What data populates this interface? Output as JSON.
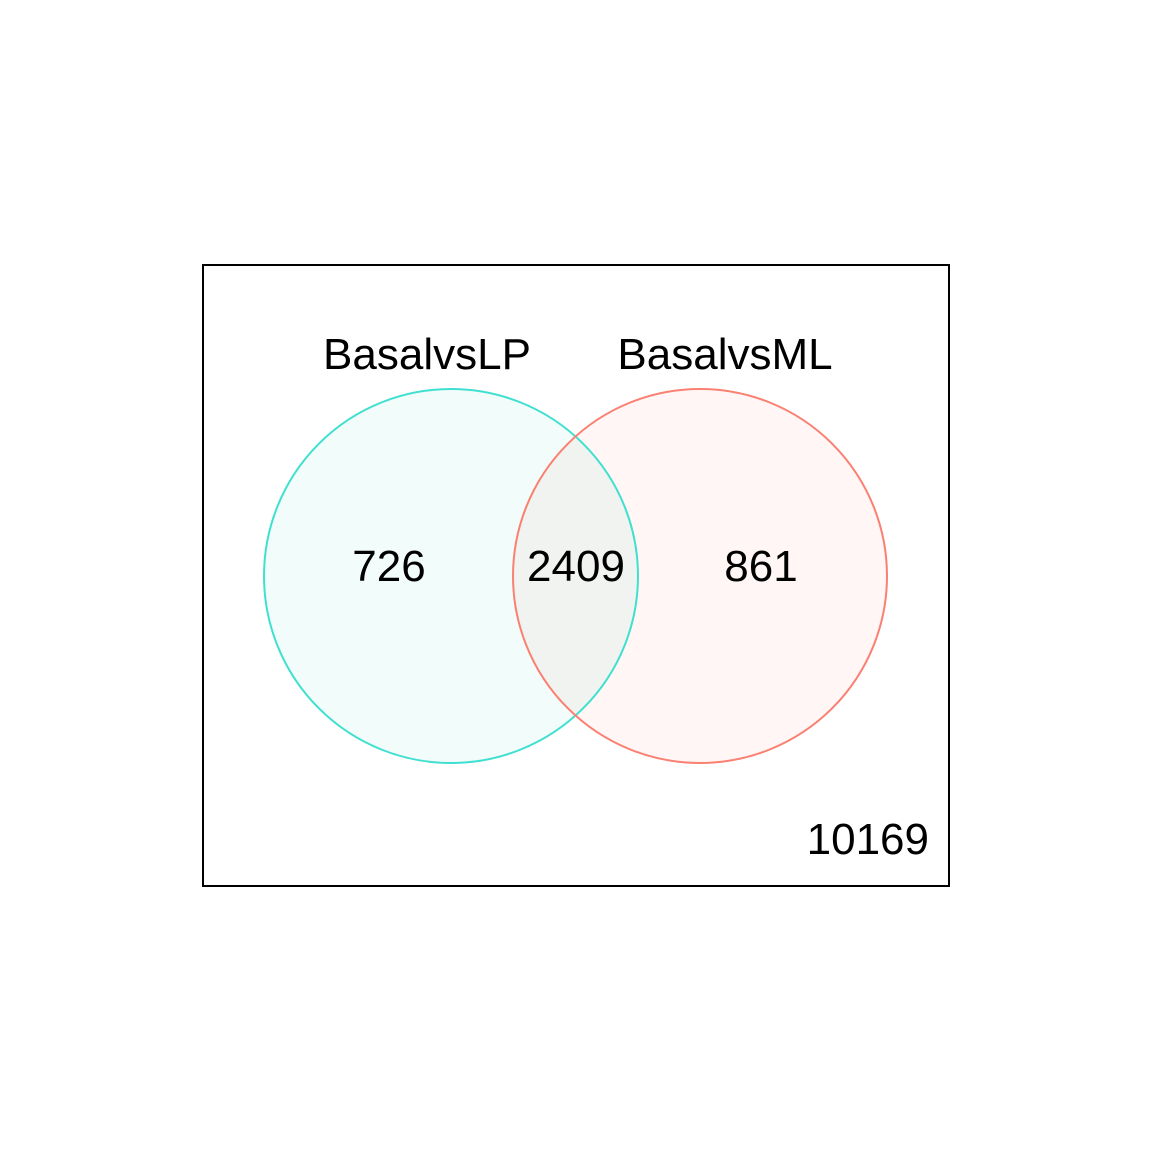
{
  "diagram": {
    "type": "venn",
    "sets": [
      {
        "name": "BasalvsLP",
        "color": "#40E0D0",
        "fill": "#F2FCFA"
      },
      {
        "name": "BasalvsML",
        "color": "#FA8072",
        "fill": "#FFF6F5"
      }
    ],
    "overlap_fill": "#F0F3EF",
    "counts": {
      "only_first": "726",
      "both": "2409",
      "only_second": "861",
      "neither": "10169"
    }
  }
}
